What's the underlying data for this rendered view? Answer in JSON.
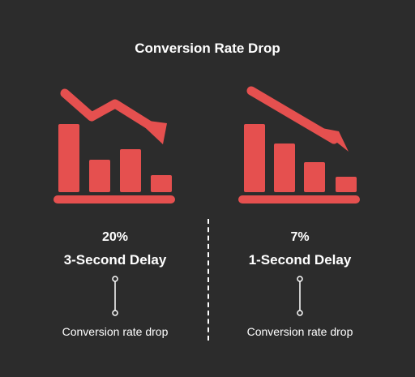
{
  "title": "Conversion Rate Drop",
  "colors": {
    "background": "#2c2c2c",
    "accent": "#e5504f",
    "text": "#ffffff"
  },
  "chart_data": [
    {
      "type": "bar",
      "icon": "declining-bar-chart-with-down-arrow",
      "value_label": "20%",
      "category_label": "3-Second Delay",
      "caption": "Conversion rate drop"
    },
    {
      "type": "bar",
      "icon": "declining-bar-chart-with-down-arrow",
      "value_label": "7%",
      "category_label": "1-Second Delay",
      "caption": "Conversion rate drop"
    }
  ]
}
